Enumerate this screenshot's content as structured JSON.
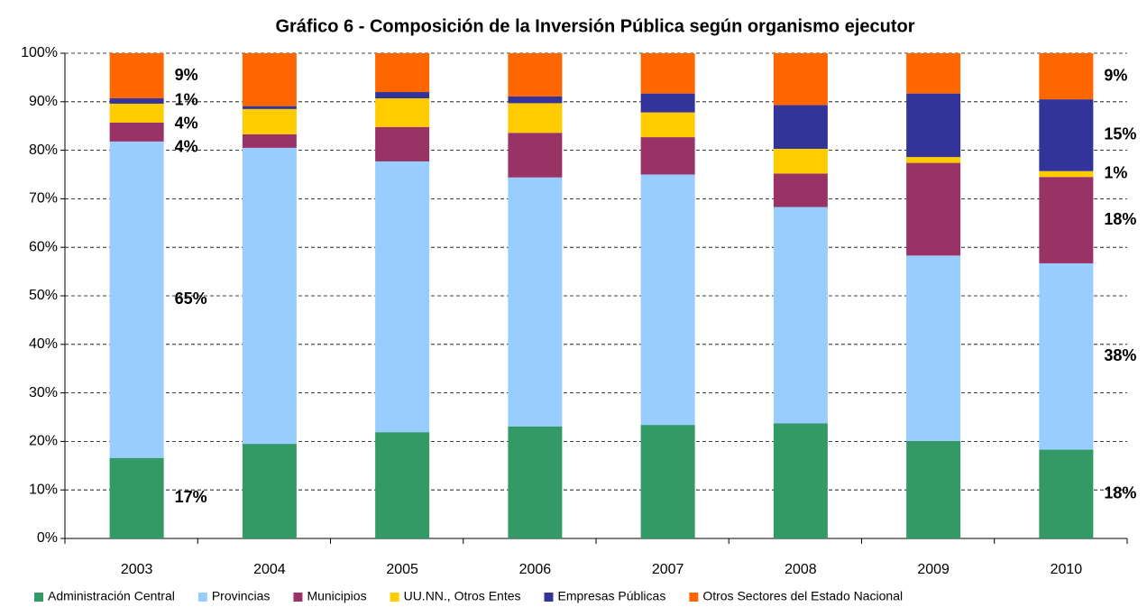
{
  "chart_data": {
    "type": "stacked_bar",
    "title": "Gráfico 6 - Composición de la Inversión Pública según organismo ejecutor",
    "categories": [
      "2003",
      "2004",
      "2005",
      "2006",
      "2007",
      "2008",
      "2009",
      "2010"
    ],
    "series": [
      {
        "name": "Administración Central",
        "color": "#339966",
        "values": [
          16.6,
          19.5,
          21.9,
          23.1,
          23.4,
          23.7,
          20.1,
          18.3
        ],
        "value_labels": [
          "17%",
          null,
          null,
          null,
          null,
          null,
          null,
          "18%"
        ]
      },
      {
        "name": "Provincias",
        "color": "#99ccff",
        "values": [
          65.2,
          61.0,
          55.8,
          51.3,
          51.6,
          44.6,
          38.2,
          38.4
        ],
        "value_labels": [
          "65%",
          null,
          null,
          null,
          null,
          null,
          null,
          "38%"
        ]
      },
      {
        "name": "Municipios",
        "color": "#993366",
        "values": [
          3.9,
          2.8,
          7.1,
          9.2,
          7.7,
          6.9,
          19.1,
          17.8
        ],
        "value_labels": [
          "4%",
          null,
          null,
          null,
          null,
          null,
          null,
          "18%"
        ]
      },
      {
        "name": "UU.NN., Otros Entes",
        "color": "#ffcc00",
        "values": [
          3.9,
          5.2,
          5.9,
          6.1,
          5.1,
          5.1,
          1.2,
          1.2
        ],
        "value_labels": [
          "4%",
          null,
          null,
          null,
          null,
          null,
          null,
          "1%"
        ]
      },
      {
        "name": "Empresas Públicas",
        "color": "#333399",
        "values": [
          1.1,
          0.6,
          1.3,
          1.4,
          3.9,
          9.0,
          13.1,
          14.8
        ],
        "value_labels": [
          "1%",
          null,
          null,
          null,
          null,
          null,
          null,
          "15%"
        ]
      },
      {
        "name": "Otros Sectores del Estado Nacional",
        "color": "#ff6600",
        "values": [
          9.3,
          10.9,
          8.0,
          8.9,
          8.3,
          10.7,
          8.3,
          9.5
        ],
        "value_labels": [
          "9%",
          null,
          null,
          null,
          null,
          null,
          null,
          "9%"
        ]
      }
    ],
    "ylim": [
      0,
      100
    ],
    "yticks": [
      {
        "value": 0,
        "label": "0%"
      },
      {
        "value": 10,
        "label": "10%"
      },
      {
        "value": 20,
        "label": "20%"
      },
      {
        "value": 30,
        "label": "30%"
      },
      {
        "value": 40,
        "label": "40%"
      },
      {
        "value": 50,
        "label": "50%"
      },
      {
        "value": 60,
        "label": "60%"
      },
      {
        "value": 70,
        "label": "70%"
      },
      {
        "value": 80,
        "label": "80%"
      },
      {
        "value": 90,
        "label": "90%"
      },
      {
        "value": 100,
        "label": "100%"
      }
    ],
    "grid": true,
    "legend": "bottom"
  }
}
